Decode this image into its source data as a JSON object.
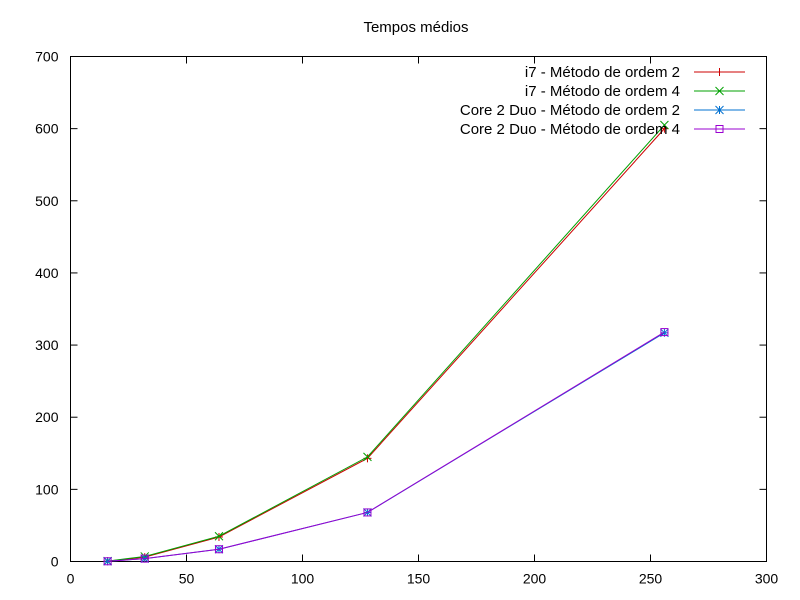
{
  "chart_data": {
    "type": "line",
    "title": "Tempos médios",
    "xlabel": "",
    "ylabel": "",
    "xlim": [
      0,
      300
    ],
    "ylim": [
      0,
      700
    ],
    "xticks": [
      0,
      50,
      100,
      150,
      200,
      250,
      300
    ],
    "yticks": [
      0,
      100,
      200,
      300,
      400,
      500,
      600,
      700
    ],
    "grid": false,
    "legend_position": "top-right",
    "series": [
      {
        "name": "i7 - Método de ordem 2",
        "color": "#cc0000",
        "marker": "plus",
        "x": [
          16,
          32,
          64,
          128,
          256
        ],
        "y": [
          0.5,
          6,
          34,
          143,
          600
        ]
      },
      {
        "name": "i7 - Método de ordem 4",
        "color": "#00a000",
        "marker": "cross",
        "x": [
          16,
          32,
          64,
          128,
          256
        ],
        "y": [
          0.6,
          7,
          35,
          145,
          605
        ]
      },
      {
        "name": "Core 2 Duo - Método de ordem 2",
        "color": "#0070d0",
        "marker": "star",
        "x": [
          16,
          32,
          64,
          128,
          256
        ],
        "y": [
          0.3,
          4,
          17,
          68,
          317
        ]
      },
      {
        "name": "Core 2 Duo - Método de ordem 4",
        "color": "#9a00d0",
        "marker": "box",
        "x": [
          16,
          32,
          64,
          128,
          256
        ],
        "y": [
          0.3,
          4,
          17,
          68,
          318
        ]
      }
    ]
  }
}
